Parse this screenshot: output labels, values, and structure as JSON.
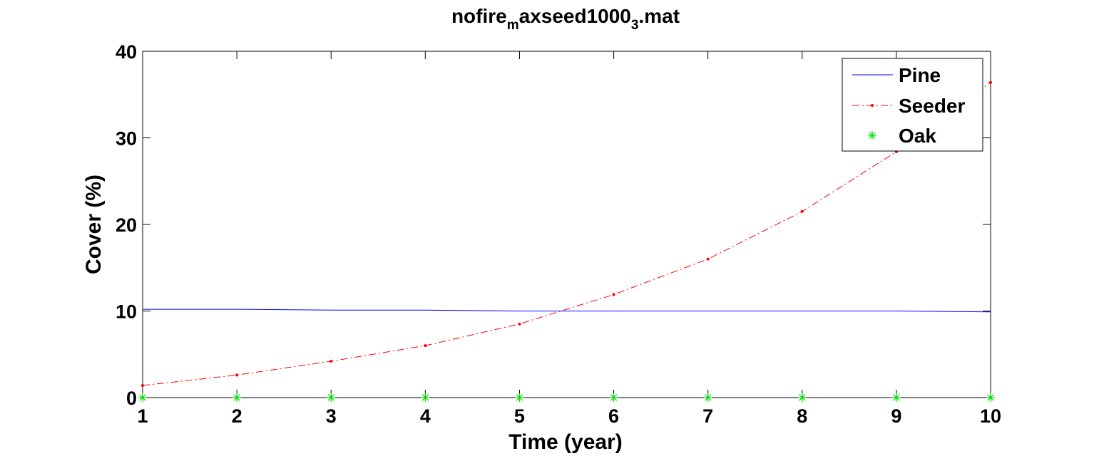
{
  "chart_data": {
    "type": "line",
    "title_parts": [
      {
        "text": "nofire",
        "sub": false
      },
      {
        "text": "m",
        "sub": true
      },
      {
        "text": "axseed1000",
        "sub": false
      },
      {
        "text": "3",
        "sub": true
      },
      {
        "text": ".mat",
        "sub": false
      }
    ],
    "xlabel": "Time (year)",
    "ylabel": "Cover (%)",
    "xlim": [
      1,
      10
    ],
    "ylim": [
      0,
      40
    ],
    "xticks": [
      1,
      2,
      3,
      4,
      5,
      6,
      7,
      8,
      9,
      10
    ],
    "yticks": [
      0,
      10,
      20,
      30,
      40
    ],
    "x": [
      1,
      2,
      3,
      4,
      5,
      6,
      7,
      8,
      9,
      10
    ],
    "legend_position": "top-right",
    "grid": false,
    "series": [
      {
        "name": "Pine",
        "color": "#0000ff",
        "style": "solid",
        "marker": "none",
        "values": [
          10.2,
          10.2,
          10.1,
          10.1,
          10.0,
          10.0,
          10.0,
          10.0,
          10.0,
          9.9
        ]
      },
      {
        "name": "Seeder",
        "color": "#ff0000",
        "style": "dashdot",
        "marker": "point",
        "values": [
          1.4,
          2.6,
          4.2,
          6.0,
          8.5,
          11.9,
          16.0,
          21.5,
          28.4,
          36.4
        ]
      },
      {
        "name": "Oak",
        "color": "#00dd00",
        "style": "none",
        "marker": "star",
        "values": [
          0,
          0,
          0,
          0,
          0,
          0,
          0,
          0,
          0,
          0
        ]
      }
    ]
  }
}
